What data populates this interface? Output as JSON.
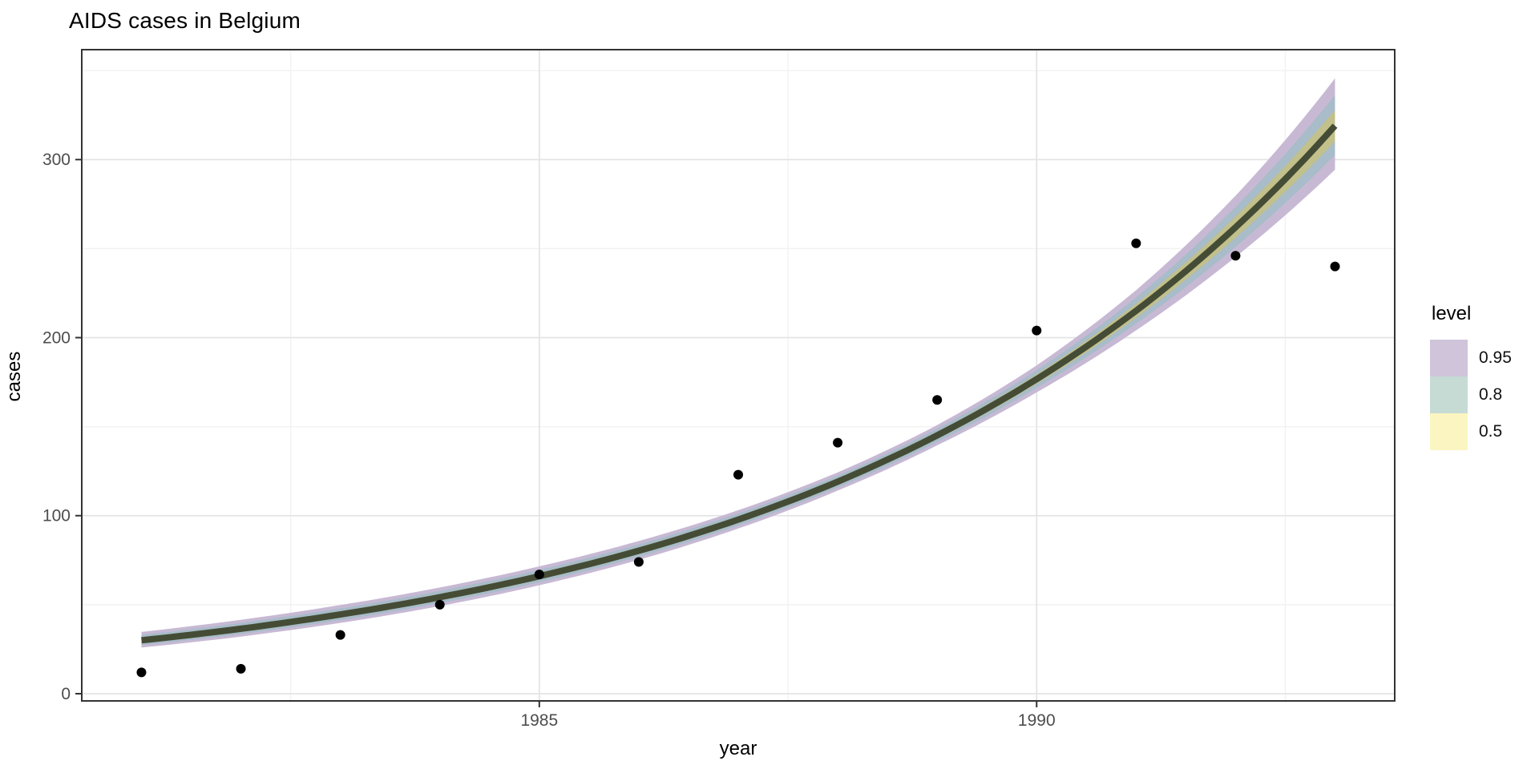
{
  "title": "AIDS cases in Belgium",
  "axes": {
    "x_label": "year",
    "y_label": "cases"
  },
  "legend": {
    "title": "level"
  },
  "style": {
    "background": "#ffffff",
    "panel_border": "#333333",
    "grid_major": "#e4e4e4",
    "grid_minor": "#f2f2f2",
    "tick_color": "#333333",
    "tick_label_color": "#4d4d4d",
    "point_color": "#000000",
    "line_color": "#454c35"
  },
  "chart_data": {
    "type": "scatter",
    "title": "AIDS cases in Belgium",
    "xlabel": "year",
    "ylabel": "cases",
    "x": [
      1981,
      1982,
      1983,
      1984,
      1985,
      1986,
      1987,
      1988,
      1989,
      1990,
      1991,
      1992,
      1993
    ],
    "y": [
      12,
      14,
      33,
      50,
      67,
      74,
      123,
      141,
      165,
      204,
      253,
      246,
      240
    ],
    "x_domain": [
      1980.4,
      1993.6
    ],
    "y_domain": [
      -4.05,
      361.75
    ],
    "x_ticks": {
      "major_values": [
        1985,
        1990
      ],
      "major_labels": [
        "1985",
        "1990"
      ],
      "minor_values": [
        1982.5,
        1987.5,
        1992.5
      ]
    },
    "y_ticks": {
      "major_values": [
        0,
        100,
        200,
        300
      ],
      "major_labels": [
        "0",
        "100",
        "200",
        "300"
      ],
      "minor_values": [
        50,
        150,
        250,
        350
      ]
    },
    "smooth": {
      "description": "exponential (Poisson GLM) fit with confidence bands",
      "years": [
        1981,
        1982,
        1983,
        1984,
        1985,
        1986,
        1987,
        1988,
        1989,
        1990,
        1991,
        1992,
        1993
      ],
      "fit": [
        30,
        36.5,
        44.5,
        54.2,
        66,
        80.3,
        97.8,
        119.1,
        145.1,
        176.7,
        215.1,
        262,
        319
      ],
      "se_log": [
        0.0743,
        0.0657,
        0.0573,
        0.049,
        0.041,
        0.0335,
        0.0268,
        0.0219,
        0.02,
        0.0219,
        0.0268,
        0.0335,
        0.041
      ]
    },
    "levels": [
      {
        "label": "0.95",
        "z": 1.96,
        "band_fill": "#c7b9d4",
        "key_fill": "#cfc4da"
      },
      {
        "label": "0.8",
        "z": 1.2816,
        "band_fill": "#a8bcc9",
        "key_fill": "#c6dbd4"
      },
      {
        "label": "0.5",
        "z": 0.6745,
        "band_fill": "#c2c08b",
        "key_fill": "#fbf6c1"
      }
    ],
    "legend_position": "right",
    "grid": true
  }
}
